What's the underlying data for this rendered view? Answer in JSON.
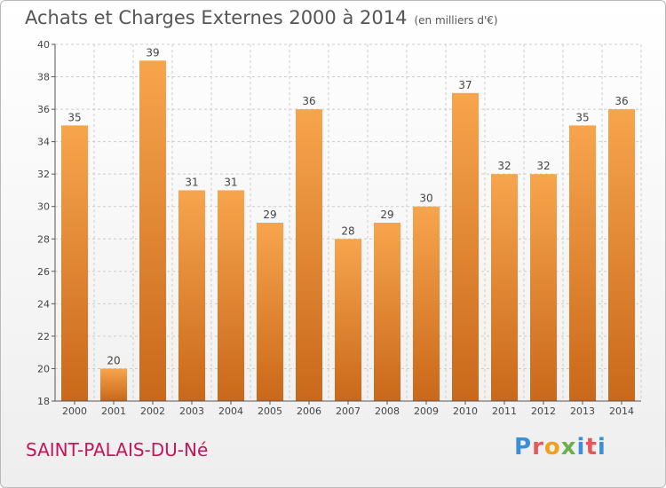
{
  "title": "Achats et Charges Externes 2000 à 2014",
  "subtitle": "(en milliers d'€)",
  "commune": "SAINT-PALAIS-DU-Né",
  "logo": [
    "P",
    "r",
    "o",
    "x",
    "i",
    "t",
    "i"
  ],
  "colors": {
    "bar_light": "#f7a54d",
    "bar_dark": "#c9681a",
    "grid": "#cccccc",
    "axis": "#555555"
  },
  "chart_data": {
    "type": "bar",
    "title": "Achats et Charges Externes 2000 à 2014",
    "subtitle": "(en milliers d'€)",
    "xlabel": "",
    "ylabel": "",
    "categories": [
      "2000",
      "2001",
      "2002",
      "2003",
      "2004",
      "2005",
      "2006",
      "2007",
      "2008",
      "2009",
      "2010",
      "2011",
      "2012",
      "2013",
      "2014"
    ],
    "values": [
      35,
      20,
      39,
      31,
      31,
      29,
      36,
      28,
      29,
      30,
      37,
      32,
      32,
      35,
      36
    ],
    "ylim": [
      18,
      40
    ],
    "yticks": [
      18,
      20,
      22,
      24,
      26,
      28,
      30,
      32,
      34,
      36,
      38,
      40
    ],
    "grid": true,
    "legend": "none"
  }
}
